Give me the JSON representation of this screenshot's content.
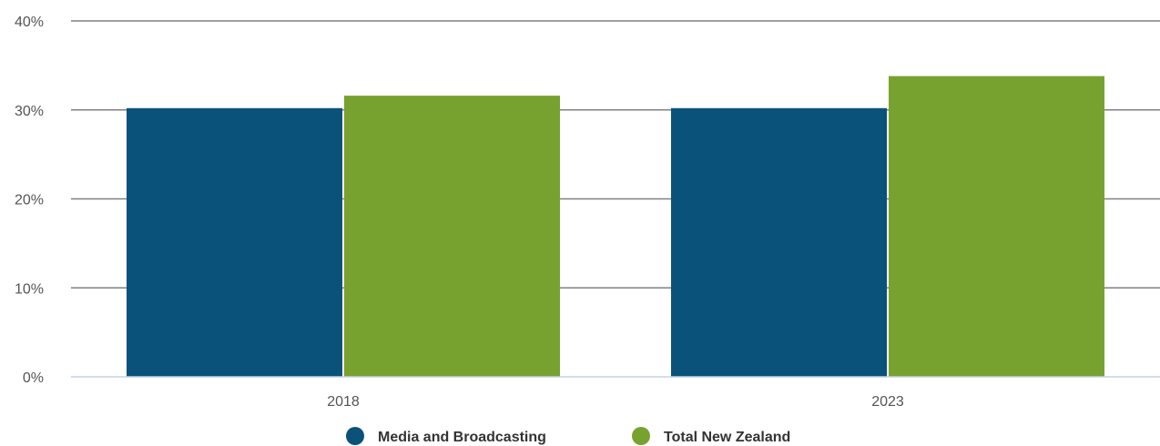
{
  "chart_data": {
    "type": "bar",
    "categories": [
      "2018",
      "2023"
    ],
    "series": [
      {
        "name": "Media and Broadcasting",
        "values": [
          30.2,
          30.2
        ],
        "color": "#0a527a"
      },
      {
        "name": "Total New Zealand",
        "values": [
          31.6,
          33.8
        ],
        "color": "#78a22f"
      }
    ],
    "ylim": [
      0,
      40
    ],
    "yticks": [
      0,
      10,
      20,
      30,
      40
    ],
    "ytick_labels": [
      "0%",
      "10%",
      "20%",
      "30%",
      "40%"
    ],
    "grid": true,
    "legend": "bottom-center",
    "xlabel": "",
    "ylabel": "",
    "title": ""
  }
}
